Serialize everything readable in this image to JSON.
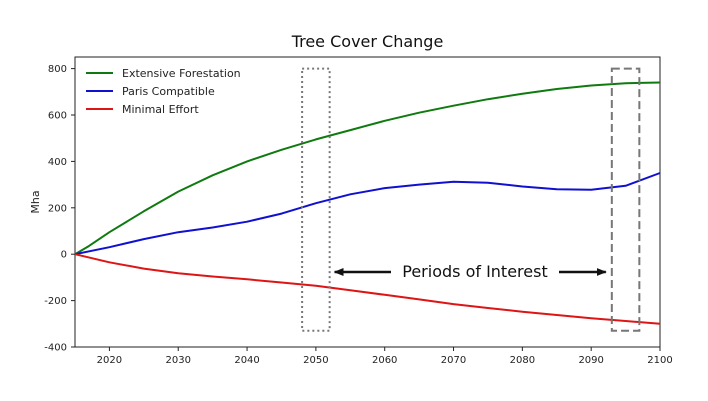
{
  "chart_data": {
    "type": "line",
    "title": "Tree Cover Change",
    "xlabel": "",
    "ylabel": "Mha",
    "xlim": [
      2015,
      2100
    ],
    "ylim": [
      -400,
      850
    ],
    "xticks": [
      2020,
      2030,
      2040,
      2050,
      2060,
      2070,
      2080,
      2090,
      2100
    ],
    "yticks": [
      -400,
      -200,
      0,
      200,
      400,
      600,
      800
    ],
    "grid": false,
    "legend_position": "top-left",
    "series": [
      {
        "name": "Extensive Forestation",
        "color": "#0f7a0f",
        "x": [
          2015,
          2017,
          2020,
          2025,
          2030,
          2035,
          2040,
          2045,
          2050,
          2055,
          2060,
          2065,
          2070,
          2075,
          2080,
          2085,
          2090,
          2095,
          2100
        ],
        "values": [
          0,
          35,
          95,
          185,
          270,
          340,
          400,
          450,
          495,
          535,
          575,
          610,
          640,
          668,
          692,
          712,
          727,
          737,
          740
        ]
      },
      {
        "name": "Paris Compatible",
        "color": "#1010d0",
        "x": [
          2015,
          2020,
          2025,
          2030,
          2035,
          2040,
          2045,
          2050,
          2055,
          2060,
          2065,
          2070,
          2075,
          2080,
          2085,
          2090,
          2095,
          2100
        ],
        "values": [
          0,
          30,
          65,
          95,
          115,
          140,
          175,
          220,
          258,
          285,
          300,
          312,
          308,
          292,
          280,
          278,
          295,
          350
        ]
      },
      {
        "name": "Minimal Effort",
        "color": "#dd1515",
        "x": [
          2015,
          2020,
          2025,
          2030,
          2035,
          2040,
          2045,
          2050,
          2055,
          2060,
          2065,
          2070,
          2075,
          2080,
          2085,
          2090,
          2095,
          2100
        ],
        "values": [
          0,
          -35,
          -62,
          -82,
          -96,
          -108,
          -122,
          -136,
          -155,
          -175,
          -195,
          -215,
          -232,
          -248,
          -262,
          -276,
          -288,
          -300
        ]
      }
    ],
    "annotations": {
      "text": "Periods of Interest",
      "highlight_periods": [
        {
          "start": 2048,
          "end": 2052,
          "ymin": -330,
          "ymax": 800,
          "style": "dotted"
        },
        {
          "start": 2093,
          "end": 2097,
          "ymin": -330,
          "ymax": 800,
          "style": "dashed"
        }
      ]
    }
  }
}
